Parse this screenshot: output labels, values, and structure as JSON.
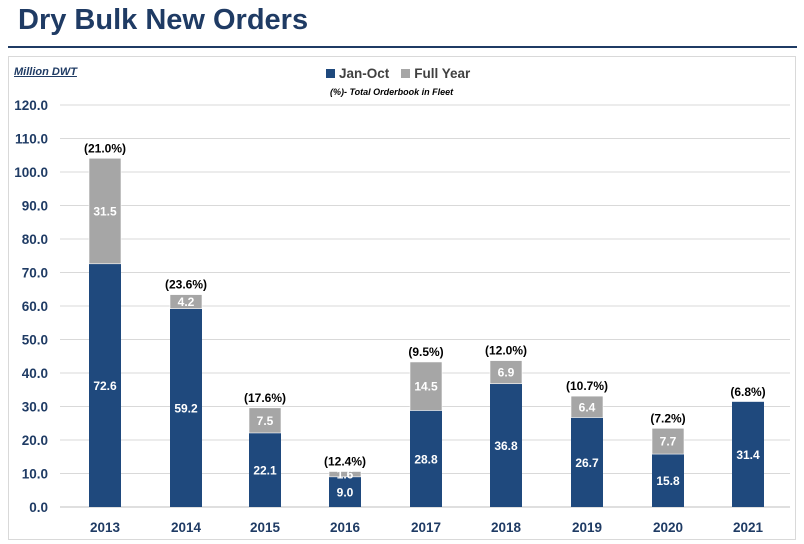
{
  "page": {
    "title": "Dry Bulk New Orders"
  },
  "chart_data": {
    "type": "bar",
    "stacked": true,
    "title": "",
    "unit_label": "Million DWT",
    "note": "(%)- Total Orderbook  in Fleet",
    "xlabel": "",
    "ylabel": "",
    "ylim": [
      0,
      120
    ],
    "yticks": [
      "0.0",
      "10.0",
      "20.0",
      "30.0",
      "40.0",
      "50.0",
      "60.0",
      "70.0",
      "80.0",
      "90.0",
      "100.0",
      "110.0",
      "120.0"
    ],
    "grid": true,
    "legend_position": "top-center",
    "categories": [
      "2013",
      "2014",
      "2015",
      "2016",
      "2017",
      "2018",
      "2019",
      "2020",
      "2021"
    ],
    "series": [
      {
        "name": "Jan-Oct",
        "color": "#1f497d",
        "values": [
          72.6,
          59.2,
          22.1,
          9.0,
          28.8,
          36.8,
          26.7,
          15.8,
          31.4
        ],
        "labels": [
          "72.6",
          "59.2",
          "22.1",
          "9.0",
          "28.8",
          "36.8",
          "26.7",
          "15.8",
          "31.4"
        ]
      },
      {
        "name": "Full Year",
        "color": "#a6a6a6",
        "values": [
          31.5,
          4.2,
          7.5,
          1.6,
          14.5,
          6.9,
          6.4,
          7.7,
          null
        ],
        "labels": [
          "31.5",
          "4.2",
          "7.5",
          "1.6",
          "14.5",
          "6.9",
          "6.4",
          "7.7",
          ""
        ]
      }
    ],
    "annotations": [
      "(21.0%)",
      "(23.6%)",
      "(17.6%)",
      "(12.4%)",
      "(9.5%)",
      "(12.0%)",
      "(10.7%)",
      "(7.2%)",
      "(6.8%)"
    ]
  }
}
